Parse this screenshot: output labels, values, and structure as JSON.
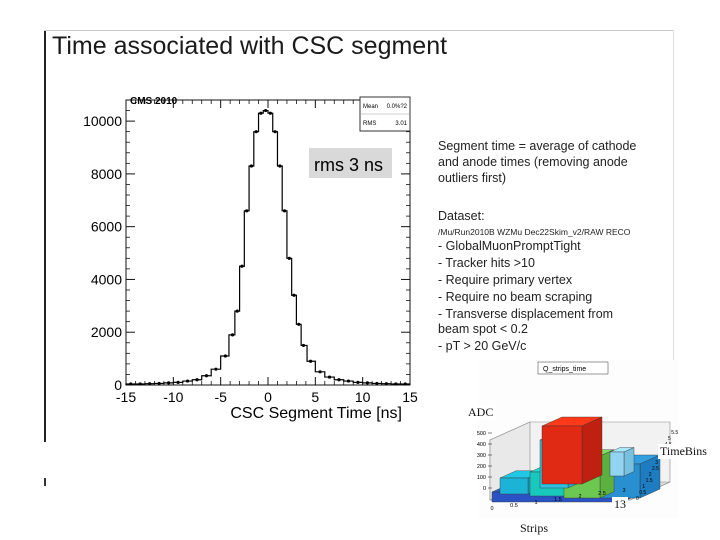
{
  "slide": {
    "title": "Time associated with CSC segment"
  },
  "chart_data": [
    {
      "type": "bar",
      "title": "CMS 2010",
      "xlabel": "CSC Segment Time [ns]",
      "ylabel": "",
      "xlim": [
        -15,
        15
      ],
      "ylim": [
        0,
        10800
      ],
      "xticks": [
        -15,
        -10,
        -5,
        0,
        5,
        10,
        15
      ],
      "yticks": [
        0,
        2000,
        4000,
        6000,
        8000,
        10000
      ],
      "x": [
        -14.5,
        -13.5,
        -12.5,
        -11.5,
        -10.5,
        -9.5,
        -8.5,
        -7.5,
        -6.5,
        -5.5,
        -4.5,
        -3.75,
        -3.25,
        -2.75,
        -2.25,
        -1.75,
        -1.25,
        -0.75,
        -0.25,
        0.25,
        0.75,
        1.25,
        1.75,
        2.25,
        2.75,
        3.25,
        3.75,
        4.5,
        5.5,
        6.5,
        7.5,
        8.5,
        9.5,
        10.5,
        11.5,
        12.5,
        13.5,
        14.5
      ],
      "values": [
        40,
        40,
        50,
        60,
        80,
        100,
        150,
        200,
        350,
        600,
        1100,
        1900,
        2800,
        4500,
        6600,
        8300,
        9600,
        10300,
        10400,
        10300,
        9600,
        8300,
        6600,
        4800,
        3400,
        2300,
        1500,
        900,
        500,
        300,
        200,
        150,
        100,
        80,
        60,
        50,
        40,
        40
      ],
      "stats": {
        "mean_label": "Mean",
        "mean_value": "0.0%?2",
        "rms_label": "RMS",
        "rms_value": "3.01"
      },
      "annotation": "rms 3 ns"
    },
    {
      "type": "bar3d",
      "title": "Q_strips_time",
      "xlabel": "Strips",
      "ylabel": "TimeBins",
      "zlabel": "ADC",
      "z_ticks": [
        "0",
        "100",
        "200",
        "300",
        "400",
        "500"
      ],
      "strip_ticks": [
        "0",
        "0.5",
        "1",
        "1.5",
        "2",
        "2.5",
        "3"
      ],
      "time_ticks": [
        "0",
        "0.5",
        "1",
        "1.5",
        "2",
        "2.5",
        "3",
        "3.5",
        "4",
        "4.5",
        "5",
        "5.5"
      ],
      "marker": "13"
    }
  ],
  "notes": {
    "line1": "Segment time = average of cathode",
    "line2": "and anode times (removing anode",
    "line3": "outliers first)",
    "dataset_label": "Dataset:",
    "dataset_path": "/Mu/Run2010B WZMu Dec22Skim_v2/RAW RECO",
    "cut1": "- GlobalMuonPromptTight",
    "cut2": "- Tracker hits >10",
    "cut3": "- Require primary vertex",
    "cut4": "- Require no beam scraping",
    "cut5": "- Transverse displacement from",
    "cut6": "beam spot < 0.2",
    "cut7": "- pT > 20 GeV/c"
  }
}
